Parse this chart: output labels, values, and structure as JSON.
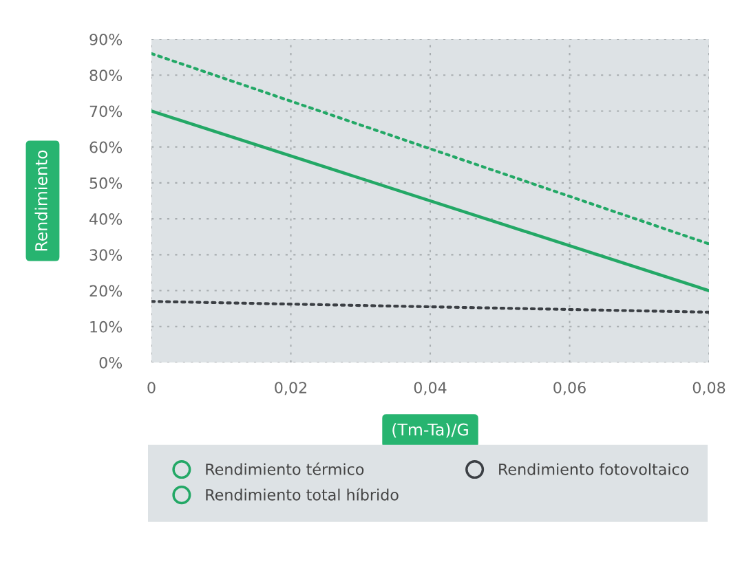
{
  "chart_data": {
    "type": "line",
    "x": [
      0,
      0.08
    ],
    "xlabel": "(Tm-Ta)/G",
    "ylabel": "Rendimiento",
    "series": [
      {
        "name": "Rendimiento térmico",
        "color": "#23a866",
        "line_style": "solid",
        "values": [
          70,
          20
        ]
      },
      {
        "name": "Rendimiento total híbrido",
        "color": "#23a866",
        "line_style": "dotted",
        "values": [
          86,
          33
        ]
      },
      {
        "name": "Rendimiento fotovoltaico",
        "color": "#3b3f44",
        "line_style": "dotted",
        "values": [
          17,
          14
        ]
      }
    ],
    "xlim": [
      0,
      0.08
    ],
    "xticks": [
      0,
      {
        "value": 0.02,
        "label": "0,02"
      },
      {
        "value": 0.04,
        "label": "0,04"
      },
      {
        "value": 0.06,
        "label": "0,06"
      },
      {
        "value": 0.08,
        "label": "0,08"
      }
    ],
    "ylim": [
      0,
      90
    ],
    "yticks": [
      {
        "value": 0,
        "label": "0%"
      },
      {
        "value": 10,
        "label": "10%"
      },
      {
        "value": 20,
        "label": "20%"
      },
      {
        "value": 30,
        "label": "30%"
      },
      {
        "value": 40,
        "label": "40%"
      },
      {
        "value": 50,
        "label": "50%"
      },
      {
        "value": 60,
        "label": "60%"
      },
      {
        "value": 70,
        "label": "70%"
      },
      {
        "value": 80,
        "label": "80%"
      },
      {
        "value": 90,
        "label": "90%"
      }
    ],
    "grid": true,
    "legend": "bottom"
  }
}
